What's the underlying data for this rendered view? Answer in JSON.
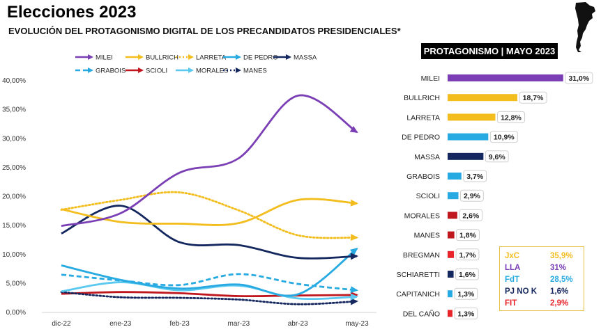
{
  "header": {
    "title": "Elecciones 2023",
    "subtitle": "EVOLUCIÓN DEL PROTAGONISMO DIGITAL DE LOS PRECANDIDATOS PRESIDENCIALES*"
  },
  "map": {
    "icon": "argentina-map-icon",
    "color": "#111111"
  },
  "chart_data": [
    {
      "type": "line",
      "title": "",
      "xlabel": "",
      "ylabel": "",
      "x": [
        "dic-22",
        "ene-23",
        "feb-23",
        "mar-23",
        "abr-23",
        "may-23"
      ],
      "y_ticks": [
        "0,00%",
        "5,00%",
        "10,00%",
        "15,00%",
        "20,00%",
        "25,00%",
        "30,00%",
        "35,00%",
        "40,00%"
      ],
      "ylim": [
        0,
        40
      ],
      "grid": false,
      "legend": "top",
      "series": [
        {
          "name": "MILEI",
          "color": "#7b3fb5",
          "dash": "solid",
          "values": [
            14.8,
            17.0,
            24.0,
            26.5,
            37.3,
            31.0
          ]
        },
        {
          "name": "BULLRICH",
          "color": "#f2bd1d",
          "dash": "solid",
          "values": [
            17.7,
            15.5,
            15.2,
            15.3,
            19.3,
            18.7
          ]
        },
        {
          "name": "LARRETA",
          "color": "#f2bd1d",
          "dash": "dotted",
          "values": [
            17.6,
            19.3,
            20.6,
            17.5,
            13.2,
            12.8
          ]
        },
        {
          "name": "DE PEDRO",
          "color": "#27aae1",
          "dash": "solid",
          "values": [
            8.0,
            5.5,
            4.0,
            4.7,
            3.0,
            10.9
          ]
        },
        {
          "name": "MASSA",
          "color": "#14275e",
          "dash": "solid",
          "values": [
            13.5,
            18.3,
            12.0,
            11.5,
            9.3,
            9.6
          ]
        },
        {
          "name": "GRABOIS",
          "color": "#27aae1",
          "dash": "dashed",
          "values": [
            6.4,
            5.4,
            4.6,
            6.5,
            4.8,
            3.7
          ]
        },
        {
          "name": "SCIOLI",
          "color": "#c0161e",
          "dash": "solid",
          "values": [
            3.1,
            3.4,
            3.2,
            2.7,
            2.8,
            2.9
          ]
        },
        {
          "name": "MORALES",
          "color": "#5bc8f0",
          "dash": "solid",
          "values": [
            3.5,
            5.1,
            3.7,
            4.5,
            2.3,
            2.6
          ]
        },
        {
          "name": "MANES",
          "color": "#14275e",
          "dash": "dotted",
          "values": [
            3.4,
            2.5,
            2.4,
            2.1,
            1.3,
            1.8
          ]
        }
      ]
    },
    {
      "type": "bar",
      "orientation": "horizontal",
      "title": "PROTAGONISMO | MAYO 2023",
      "categories": [
        "MILEI",
        "BULLRICH",
        "LARRETA",
        "DE PEDRO",
        "MASSA",
        "GRABOIS",
        "SCIOLI",
        "MORALES",
        "MANES",
        "BREGMAN",
        "SCHIARETTI",
        "CAPITANICH",
        "DEL CAÑO"
      ],
      "values": [
        31.0,
        18.7,
        12.8,
        10.9,
        9.6,
        3.7,
        2.9,
        2.6,
        1.8,
        1.7,
        1.6,
        1.3,
        1.3
      ],
      "labels": [
        "31,0%",
        "18,7%",
        "12,8%",
        "10,9%",
        "9,6%",
        "3,7%",
        "2,9%",
        "2,6%",
        "1,8%",
        "1,7%",
        "1,6%",
        "1,3%",
        "1,3%"
      ],
      "colors": [
        "#7b3fb5",
        "#f2bd1d",
        "#f2bd1d",
        "#27aae1",
        "#14275e",
        "#27aae1",
        "#27aae1",
        "#c0161e",
        "#c0161e",
        "#e8242a",
        "#14275e",
        "#27aae1",
        "#e8242a"
      ]
    }
  ],
  "summary": {
    "rows": [
      {
        "label": "JxC",
        "value": "35,9%",
        "color": "#f2bd1d"
      },
      {
        "label": "LLA",
        "value": "31%",
        "color": "#7b3fb5"
      },
      {
        "label": "FdT",
        "value": "28,5%",
        "color": "#27aae1"
      },
      {
        "label": "PJ NO K",
        "value": "1,6%",
        "color": "#14275e"
      },
      {
        "label": "FIT",
        "value": "2,9%",
        "color": "#e8242a"
      }
    ]
  }
}
